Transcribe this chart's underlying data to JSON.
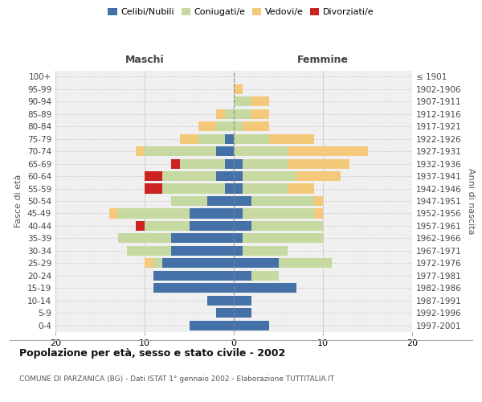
{
  "age_groups": [
    "0-4",
    "5-9",
    "10-14",
    "15-19",
    "20-24",
    "25-29",
    "30-34",
    "35-39",
    "40-44",
    "45-49",
    "50-54",
    "55-59",
    "60-64",
    "65-69",
    "70-74",
    "75-79",
    "80-84",
    "85-89",
    "90-94",
    "95-99",
    "100+"
  ],
  "birth_years": [
    "1997-2001",
    "1992-1996",
    "1987-1991",
    "1982-1986",
    "1977-1981",
    "1972-1976",
    "1967-1971",
    "1962-1966",
    "1957-1961",
    "1952-1956",
    "1947-1951",
    "1942-1946",
    "1937-1941",
    "1932-1936",
    "1927-1931",
    "1922-1926",
    "1917-1921",
    "1912-1916",
    "1907-1911",
    "1902-1906",
    "≤ 1901"
  ],
  "maschi": {
    "celibi": [
      5,
      2,
      3,
      9,
      9,
      8,
      7,
      7,
      5,
      5,
      3,
      1,
      2,
      1,
      2,
      1,
      0,
      0,
      0,
      0,
      0
    ],
    "coniugati": [
      0,
      0,
      0,
      0,
      0,
      1,
      5,
      6,
      5,
      8,
      4,
      7,
      6,
      5,
      8,
      3,
      2,
      1,
      0,
      0,
      0
    ],
    "vedovi": [
      0,
      0,
      0,
      0,
      0,
      1,
      0,
      0,
      0,
      1,
      0,
      0,
      0,
      0,
      1,
      2,
      2,
      1,
      0,
      0,
      0
    ],
    "divorziati": [
      0,
      0,
      0,
      0,
      0,
      0,
      0,
      0,
      1,
      0,
      0,
      2,
      2,
      1,
      0,
      0,
      0,
      0,
      0,
      0,
      0
    ]
  },
  "femmine": {
    "nubili": [
      4,
      2,
      2,
      7,
      2,
      5,
      1,
      1,
      2,
      1,
      2,
      1,
      1,
      1,
      0,
      0,
      0,
      0,
      0,
      0,
      0
    ],
    "coniugate": [
      0,
      0,
      0,
      0,
      3,
      6,
      5,
      9,
      8,
      8,
      7,
      5,
      6,
      5,
      6,
      4,
      1,
      2,
      2,
      0,
      0
    ],
    "vedove": [
      0,
      0,
      0,
      0,
      0,
      0,
      0,
      0,
      0,
      1,
      1,
      3,
      5,
      7,
      9,
      5,
      3,
      2,
      2,
      1,
      0
    ],
    "divorziate": [
      0,
      0,
      0,
      0,
      0,
      0,
      0,
      0,
      0,
      0,
      0,
      0,
      0,
      0,
      0,
      0,
      0,
      0,
      0,
      0,
      0
    ]
  },
  "colors": {
    "celibi_nubili": "#4472a8",
    "coniugati": "#c5d9a0",
    "vedovi": "#f5c97a",
    "divorziati": "#cc2222"
  },
  "xlim": [
    -20,
    20
  ],
  "title": "Popolazione per età, sesso e stato civile - 2002",
  "subtitle": "COMUNE DI PARZANICA (BG) - Dati ISTAT 1° gennaio 2002 - Elaborazione TUTTITALIA.IT",
  "ylabel_left": "Fasce di età",
  "ylabel_right": "Anni di nascita",
  "xlabel_maschi": "Maschi",
  "xlabel_femmine": "Femmine",
  "bg_color": "#f0f0f0",
  "grid_color": "#cccccc"
}
